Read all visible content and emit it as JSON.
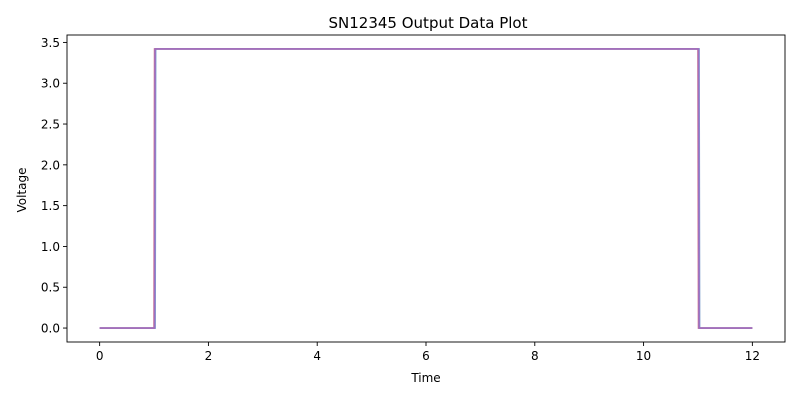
{
  "chart_data": {
    "type": "line",
    "title": "SN12345 Output Data Plot",
    "xlabel": "Time",
    "ylabel": "Voltage",
    "xlim": [
      -0.6,
      12.6
    ],
    "ylim": [
      -0.171,
      3.591
    ],
    "xticks": [
      0,
      2,
      4,
      6,
      8,
      10,
      12
    ],
    "yticks": [
      0.0,
      0.5,
      1.0,
      1.5,
      2.0,
      2.5,
      3.0,
      3.5
    ],
    "xtick_labels": [
      "0",
      "2",
      "4",
      "6",
      "8",
      "10",
      "12"
    ],
    "ytick_labels": [
      "0.0",
      "0.5",
      "1.0",
      "1.5",
      "2.0",
      "2.5",
      "3.0",
      "3.5"
    ],
    "grid": false,
    "legend": "none",
    "series": [
      {
        "color": "#6a8fc4",
        "x": [
          0,
          1.02,
          1.03,
          11.02,
          11.03,
          12
        ],
        "y": [
          0.0,
          0.0,
          3.42,
          3.42,
          0.0,
          0.0
        ]
      },
      {
        "color": "#c45a7a",
        "x": [
          0,
          1.0,
          1.01,
          11.0,
          11.01,
          12
        ],
        "y": [
          0.0,
          0.0,
          3.42,
          3.42,
          0.0,
          0.0
        ]
      },
      {
        "color": "#9a6fc8",
        "x": [
          0,
          1.01,
          1.02,
          11.01,
          11.02,
          12
        ],
        "y": [
          0.0,
          0.0,
          3.42,
          3.42,
          0.0,
          0.0
        ]
      }
    ]
  }
}
